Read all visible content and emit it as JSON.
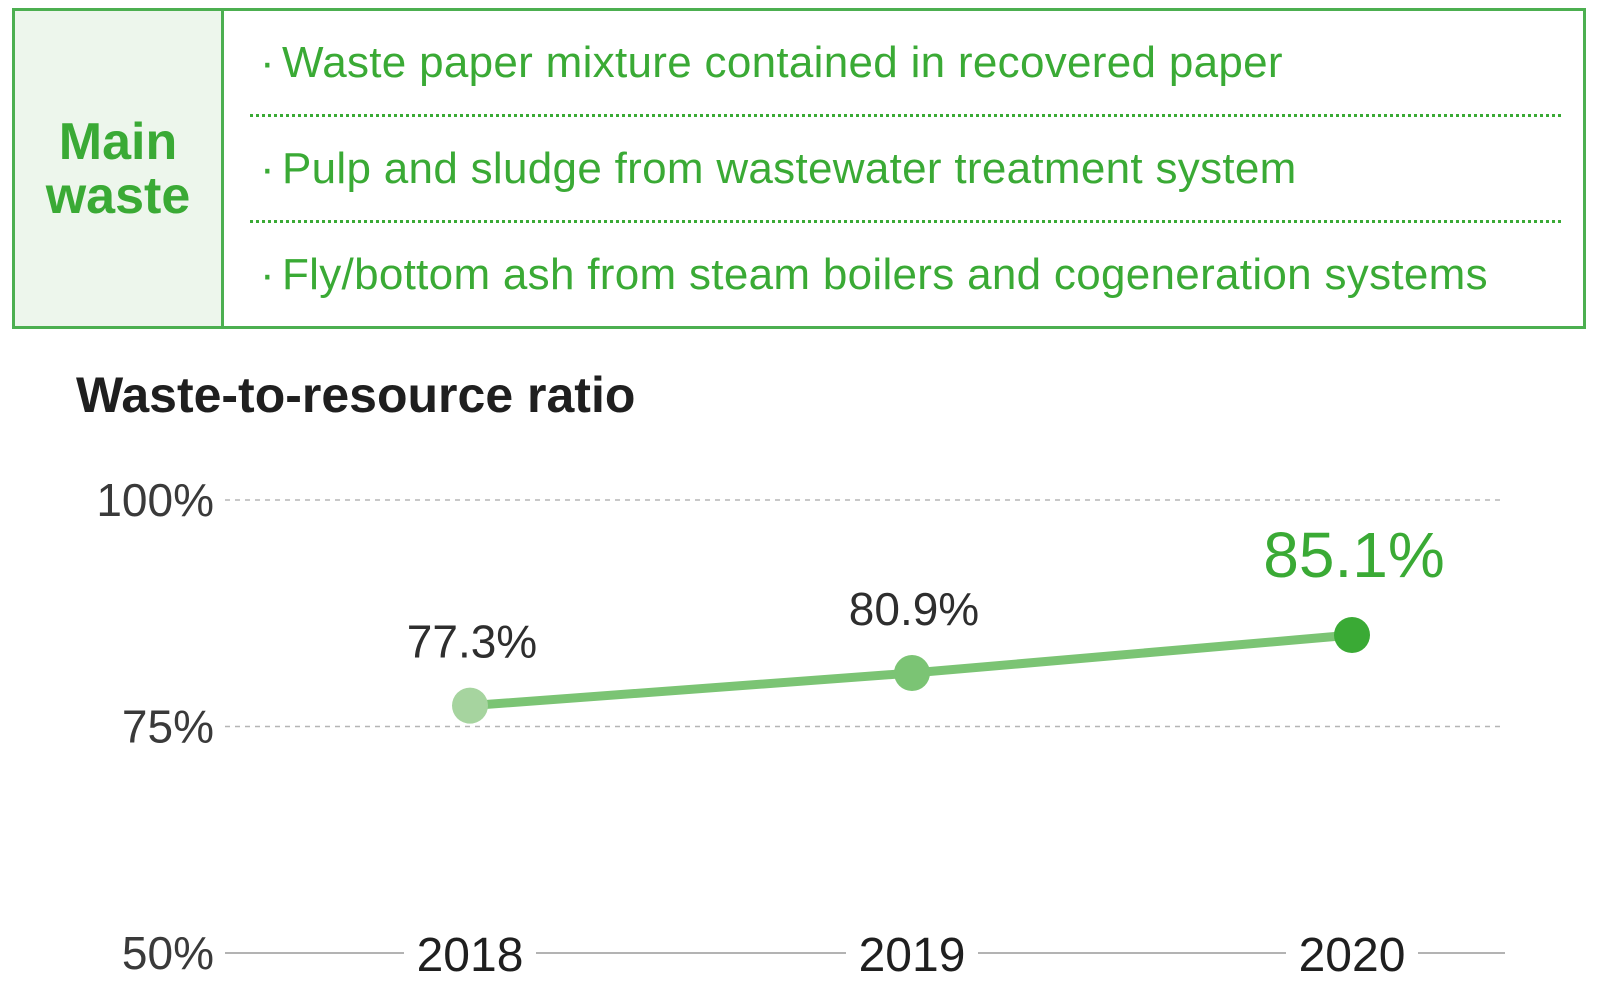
{
  "waste_table": {
    "header": "Main waste",
    "bullet": "·",
    "items": [
      "Waste paper mixture contained in recovered paper",
      "Pulp and sludge from wastewater treatment system",
      "Fly/bottom ash from steam boilers and cogeneration systems"
    ]
  },
  "chart_data": {
    "type": "line",
    "title": "Waste-to-resource ratio",
    "categories": [
      "2018",
      "2019",
      "2020"
    ],
    "values": [
      77.3,
      80.9,
      85.1
    ],
    "value_labels": [
      "77.3%",
      "80.9%",
      "85.1%"
    ],
    "point_colors": [
      "#a6d49f",
      "#7bc474",
      "#3aaa35"
    ],
    "line_color": "#7bc474",
    "highlight_color": "#3aaa35",
    "yticks": [
      50,
      75,
      100
    ],
    "ytick_labels": [
      "50%",
      "75%",
      "100%"
    ],
    "ylim": [
      50,
      100
    ],
    "xlabel": "",
    "ylabel": "",
    "grid": true,
    "legend": "none"
  }
}
